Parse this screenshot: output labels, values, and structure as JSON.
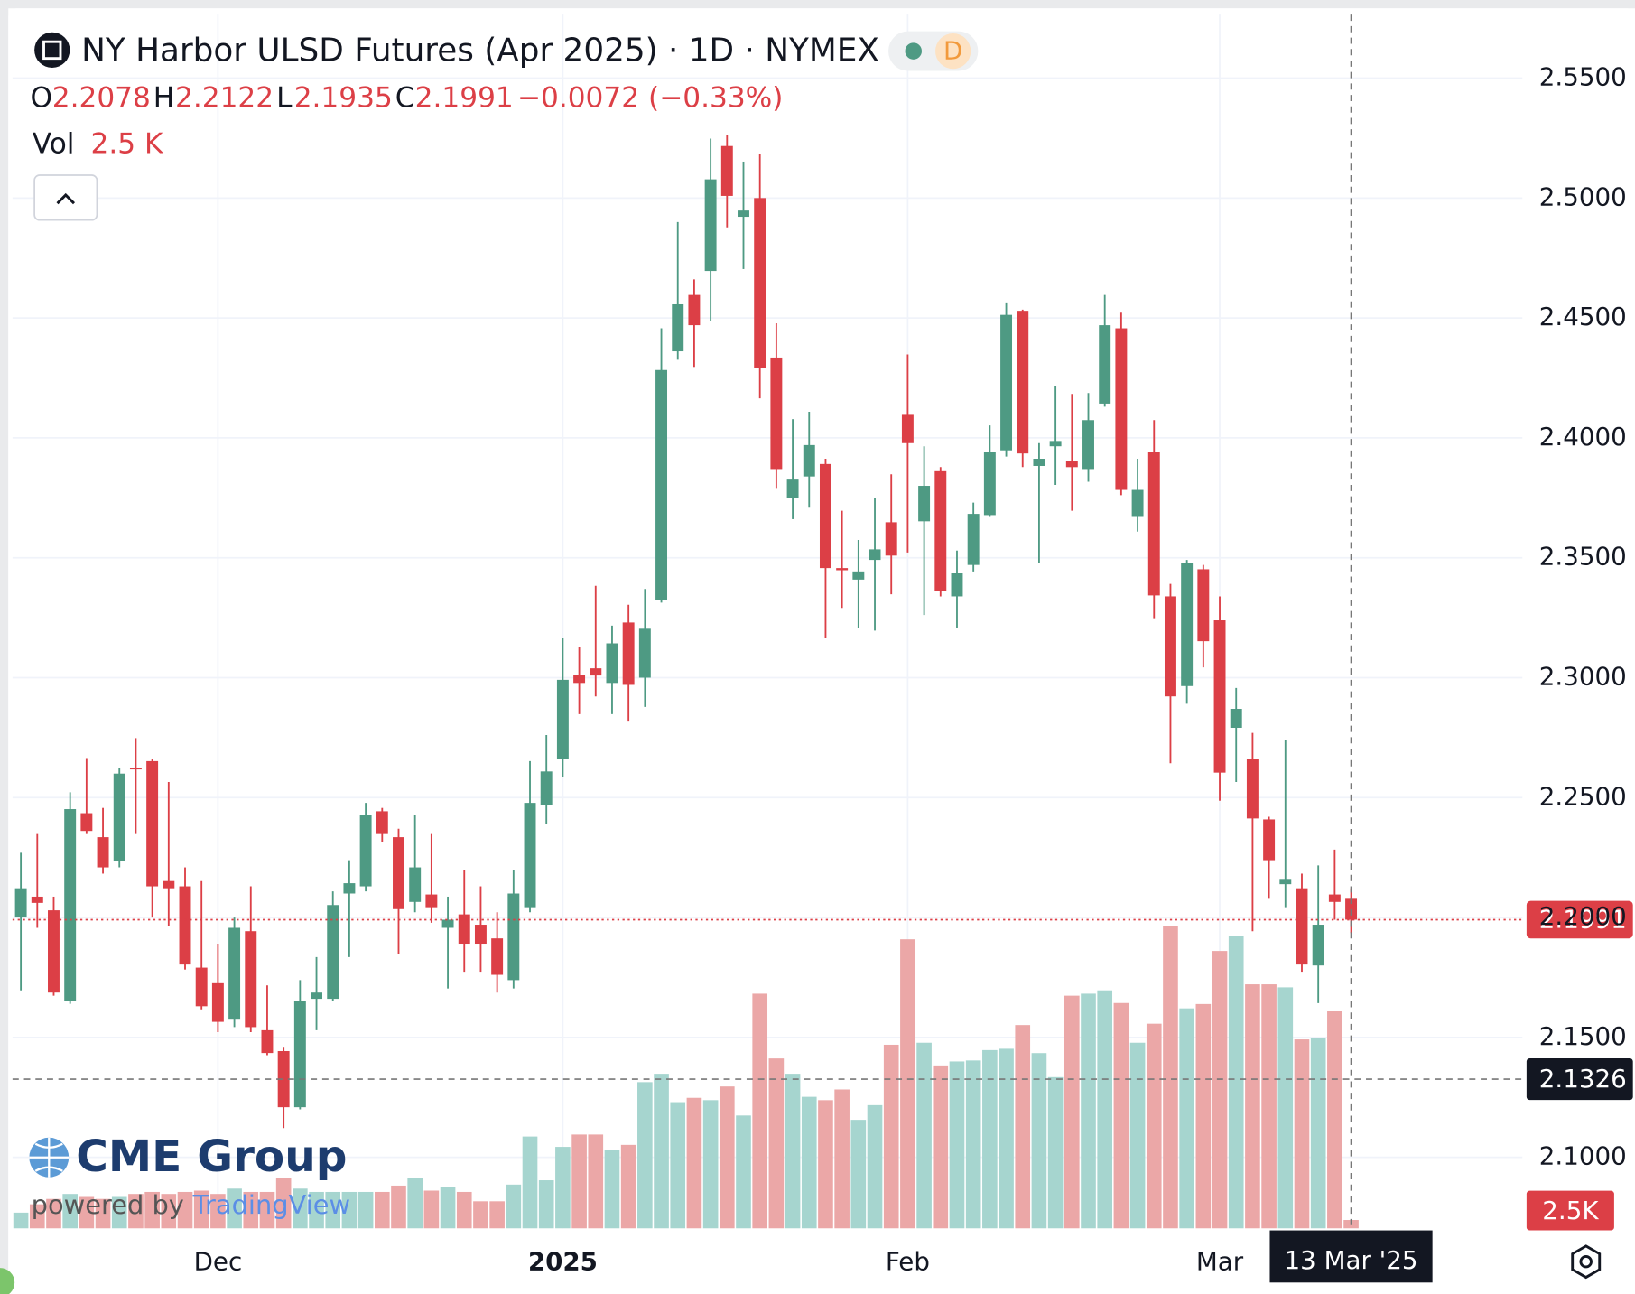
{
  "chart_data": {
    "type": "candlestick",
    "title": "NY Harbor ULSD Futures (Apr 2025) · 1D · NYMEX",
    "interval": "D",
    "ohlc_labels": [
      "O",
      "H",
      "L",
      "C"
    ],
    "change": "−0.0072 (−0.33%)",
    "categories": [
      null,
      null,
      null,
      null,
      null,
      null,
      null,
      null,
      null,
      null,
      null,
      null,
      "Dec",
      null,
      null,
      null,
      null,
      null,
      null,
      null,
      null,
      null,
      null,
      null,
      null,
      null,
      null,
      null,
      null,
      null,
      null,
      null,
      null,
      "2025",
      null,
      null,
      null,
      null,
      null,
      null,
      null,
      null,
      null,
      null,
      null,
      null,
      null,
      null,
      null,
      null,
      null,
      null,
      null,
      null,
      "Feb",
      null,
      null,
      null,
      null,
      null,
      null,
      null,
      null,
      null,
      null,
      null,
      null,
      null,
      null,
      null,
      null,
      null,
      null,
      "Mar",
      null,
      null,
      null,
      null,
      null,
      null,
      null,
      "13 Mar '25"
    ],
    "open": [
      2.2,
      2.2087,
      2.203,
      2.1652,
      2.2435,
      2.2335,
      2.2235,
      2.2624,
      2.2652,
      2.2152,
      2.213,
      2.1791,
      2.1726,
      2.1574,
      2.1943,
      2.153,
      2.1443,
      2.1209,
      2.1661,
      2.1661,
      2.21,
      2.213,
      2.2443,
      2.2335,
      2.2065,
      2.2096,
      2.1957,
      2.2013,
      2.197,
      2.1913,
      2.1739,
      2.2043,
      2.247,
      2.2661,
      2.3013,
      2.3039,
      2.2978,
      2.323,
      2.3,
      2.3322,
      2.4361,
      2.4596,
      2.4696,
      2.5217,
      2.4922,
      2.5,
      2.4335,
      2.3748,
      2.3839,
      2.3891,
      2.3457,
      2.3409,
      2.3491,
      2.3648,
      2.4096,
      2.3652,
      2.3861,
      2.3339,
      2.347,
      2.3678,
      2.3948,
      2.453,
      2.3883,
      2.3965,
      2.3904,
      2.387,
      2.4143,
      2.4457,
      2.3674,
      2.3943,
      2.3339,
      2.2965,
      2.3452,
      2.3239,
      2.2791,
      2.2661,
      2.2409,
      2.2139,
      2.2122,
      2.18,
      2.2096,
      2.2078
    ],
    "high": [
      2.227,
      2.2348,
      2.2087,
      2.2522,
      2.2665,
      2.2457,
      2.2622,
      2.2748,
      2.2661,
      2.2565,
      2.2209,
      2.2152,
      2.1891,
      2.2,
      2.213,
      2.1717,
      2.1457,
      2.1739,
      2.1835,
      2.2109,
      2.2239,
      2.2478,
      2.2457,
      2.237,
      2.2426,
      2.2348,
      2.2087,
      2.2196,
      2.213,
      2.2022,
      2.2196,
      2.2652,
      2.2761,
      2.3165,
      2.313,
      2.3383,
      2.3217,
      2.3304,
      2.337,
      2.4457,
      2.49,
      2.4661,
      2.5248,
      2.5261,
      2.5152,
      2.5183,
      2.4478,
      2.4078,
      2.4109,
      2.3913,
      2.3696,
      2.3574,
      2.3748,
      2.3848,
      2.4348,
      2.3965,
      2.3878,
      2.353,
      2.373,
      2.4052,
      2.4565,
      2.4535,
      2.3978,
      2.4217,
      2.4183,
      2.4187,
      2.4596,
      2.4522,
      2.3913,
      2.4074,
      2.3391,
      2.3491,
      2.347,
      2.3339,
      2.2957,
      2.277,
      2.242,
      2.2739,
      2.2183,
      2.2217,
      2.2283,
      2.2122
    ],
    "low": [
      2.1696,
      2.1957,
      2.1674,
      2.164,
      2.2348,
      2.2183,
      2.2209,
      2.2348,
      2.2,
      2.1965,
      2.1783,
      2.1617,
      2.1522,
      2.1543,
      2.1522,
      2.1426,
      2.1122,
      2.12,
      2.153,
      2.1652,
      2.1835,
      2.2109,
      2.2313,
      2.1848,
      2.2022,
      2.1978,
      2.1704,
      2.1774,
      2.1774,
      2.1687,
      2.1704,
      2.2022,
      2.2391,
      2.2587,
      2.2848,
      2.2922,
      2.2848,
      2.2817,
      2.2878,
      2.3313,
      2.4326,
      2.4296,
      2.4487,
      2.4878,
      2.4704,
      2.4165,
      2.3791,
      2.3661,
      2.3709,
      2.3165,
      2.3291,
      2.3209,
      2.3196,
      2.3348,
      2.3522,
      2.3261,
      2.3339,
      2.3209,
      2.3443,
      2.3674,
      2.3922,
      2.3878,
      2.3478,
      2.3804,
      2.3696,
      2.3817,
      2.413,
      2.3761,
      2.3609,
      2.3248,
      2.2643,
      2.2891,
      2.3043,
      2.2487,
      2.2565,
      2.1943,
      2.2078,
      2.2043,
      2.1774,
      2.1643,
      2.1991,
      2.1935
    ],
    "close": [
      2.2122,
      2.2061,
      2.1687,
      2.2452,
      2.2361,
      2.2209,
      2.26,
      2.262,
      2.213,
      2.2122,
      2.1804,
      2.163,
      2.1565,
      2.1957,
      2.1543,
      2.1435,
      2.1209,
      2.1652,
      2.1687,
      2.2052,
      2.2143,
      2.2426,
      2.2348,
      2.2035,
      2.2209,
      2.2043,
      2.1991,
      2.1891,
      2.1891,
      2.1761,
      2.21,
      2.2478,
      2.2609,
      2.2991,
      2.2978,
      2.3009,
      2.3143,
      2.297,
      2.3204,
      2.4283,
      2.4557,
      2.447,
      2.5078,
      2.5009,
      2.4948,
      2.4291,
      2.387,
      2.3826,
      2.397,
      2.3457,
      2.3448,
      2.3443,
      2.3535,
      2.3509,
      2.3978,
      2.38,
      2.3361,
      2.3435,
      2.3683,
      2.3943,
      2.4513,
      2.3935,
      2.3913,
      2.3987,
      2.3878,
      2.4074,
      2.447,
      2.3783,
      2.3783,
      2.3343,
      2.2922,
      2.3478,
      2.3152,
      2.2604,
      2.287,
      2.2413,
      2.2239,
      2.2161,
      2.1804,
      2.197,
      2.2065,
      2.1991
    ],
    "up_color": "#4e9a83",
    "down_color": "#dc3f46",
    "volume": {
      "name": "Vol",
      "values": [
        4700,
        7200,
        8800,
        10300,
        9400,
        8800,
        9400,
        10300,
        10900,
        10300,
        10900,
        11300,
        10300,
        11900,
        10900,
        10900,
        15000,
        11900,
        10900,
        10900,
        10900,
        10900,
        10900,
        12800,
        15000,
        11300,
        12500,
        10900,
        8100,
        8100,
        13100,
        27500,
        14400,
        24400,
        28100,
        28100,
        23400,
        25000,
        43800,
        46300,
        37800,
        39100,
        38400,
        42500,
        33800,
        70300,
        50900,
        46300,
        39400,
        38400,
        41600,
        32500,
        36900,
        55000,
        86600,
        55600,
        48800,
        50000,
        50300,
        53400,
        53800,
        60900,
        52500,
        45300,
        69700,
        70300,
        71300,
        67500,
        55600,
        61300,
        90600,
        65900,
        67200,
        83100,
        87500,
        73100,
        73100,
        72200,
        56600,
        56900,
        65000,
        2500
      ],
      "value_labels": [
        null,
        null,
        null,
        null,
        null,
        null,
        null,
        null,
        null,
        null,
        null,
        null,
        null,
        null,
        null,
        null,
        null,
        null,
        null,
        null,
        null,
        null,
        null,
        null,
        null,
        null,
        null,
        null,
        null,
        null,
        null,
        null,
        null,
        null,
        null,
        null,
        null,
        null,
        null,
        null,
        null,
        null,
        null,
        null,
        null,
        null,
        null,
        null,
        null,
        null,
        null,
        null,
        null,
        null,
        null,
        null,
        null,
        null,
        null,
        null,
        null,
        null,
        null,
        null,
        null,
        null,
        null,
        null,
        null,
        null,
        null,
        null,
        null,
        null,
        null,
        null,
        null,
        null,
        null,
        null,
        null,
        "2.5 K"
      ],
      "axis_tag": "2.5K",
      "up_color": "#a6d5cf",
      "down_color": "#eba7a7"
    },
    "ylim": [
      2.0704,
      2.5765
    ],
    "yticks": [
      {
        "value": 2.1,
        "label": "2.1000"
      },
      {
        "value": 2.15,
        "label": "2.1500"
      },
      {
        "value": 2.2,
        "label": "2.2000"
      },
      {
        "value": 2.25,
        "label": "2.2500"
      },
      {
        "value": 2.3,
        "label": "2.3000"
      },
      {
        "value": 2.35,
        "label": "2.3500"
      },
      {
        "value": 2.4,
        "label": "2.4000"
      },
      {
        "value": 2.45,
        "label": "2.4500"
      },
      {
        "value": 2.5,
        "label": "2.5000"
      },
      {
        "value": 2.55,
        "label": "2.5500"
      }
    ],
    "grid": true,
    "crosshair": {
      "price": 2.1326,
      "index": 81
    },
    "watermark": {
      "brand": "CME Group",
      "powered_by": "powered by",
      "platform": "TradingView"
    }
  }
}
